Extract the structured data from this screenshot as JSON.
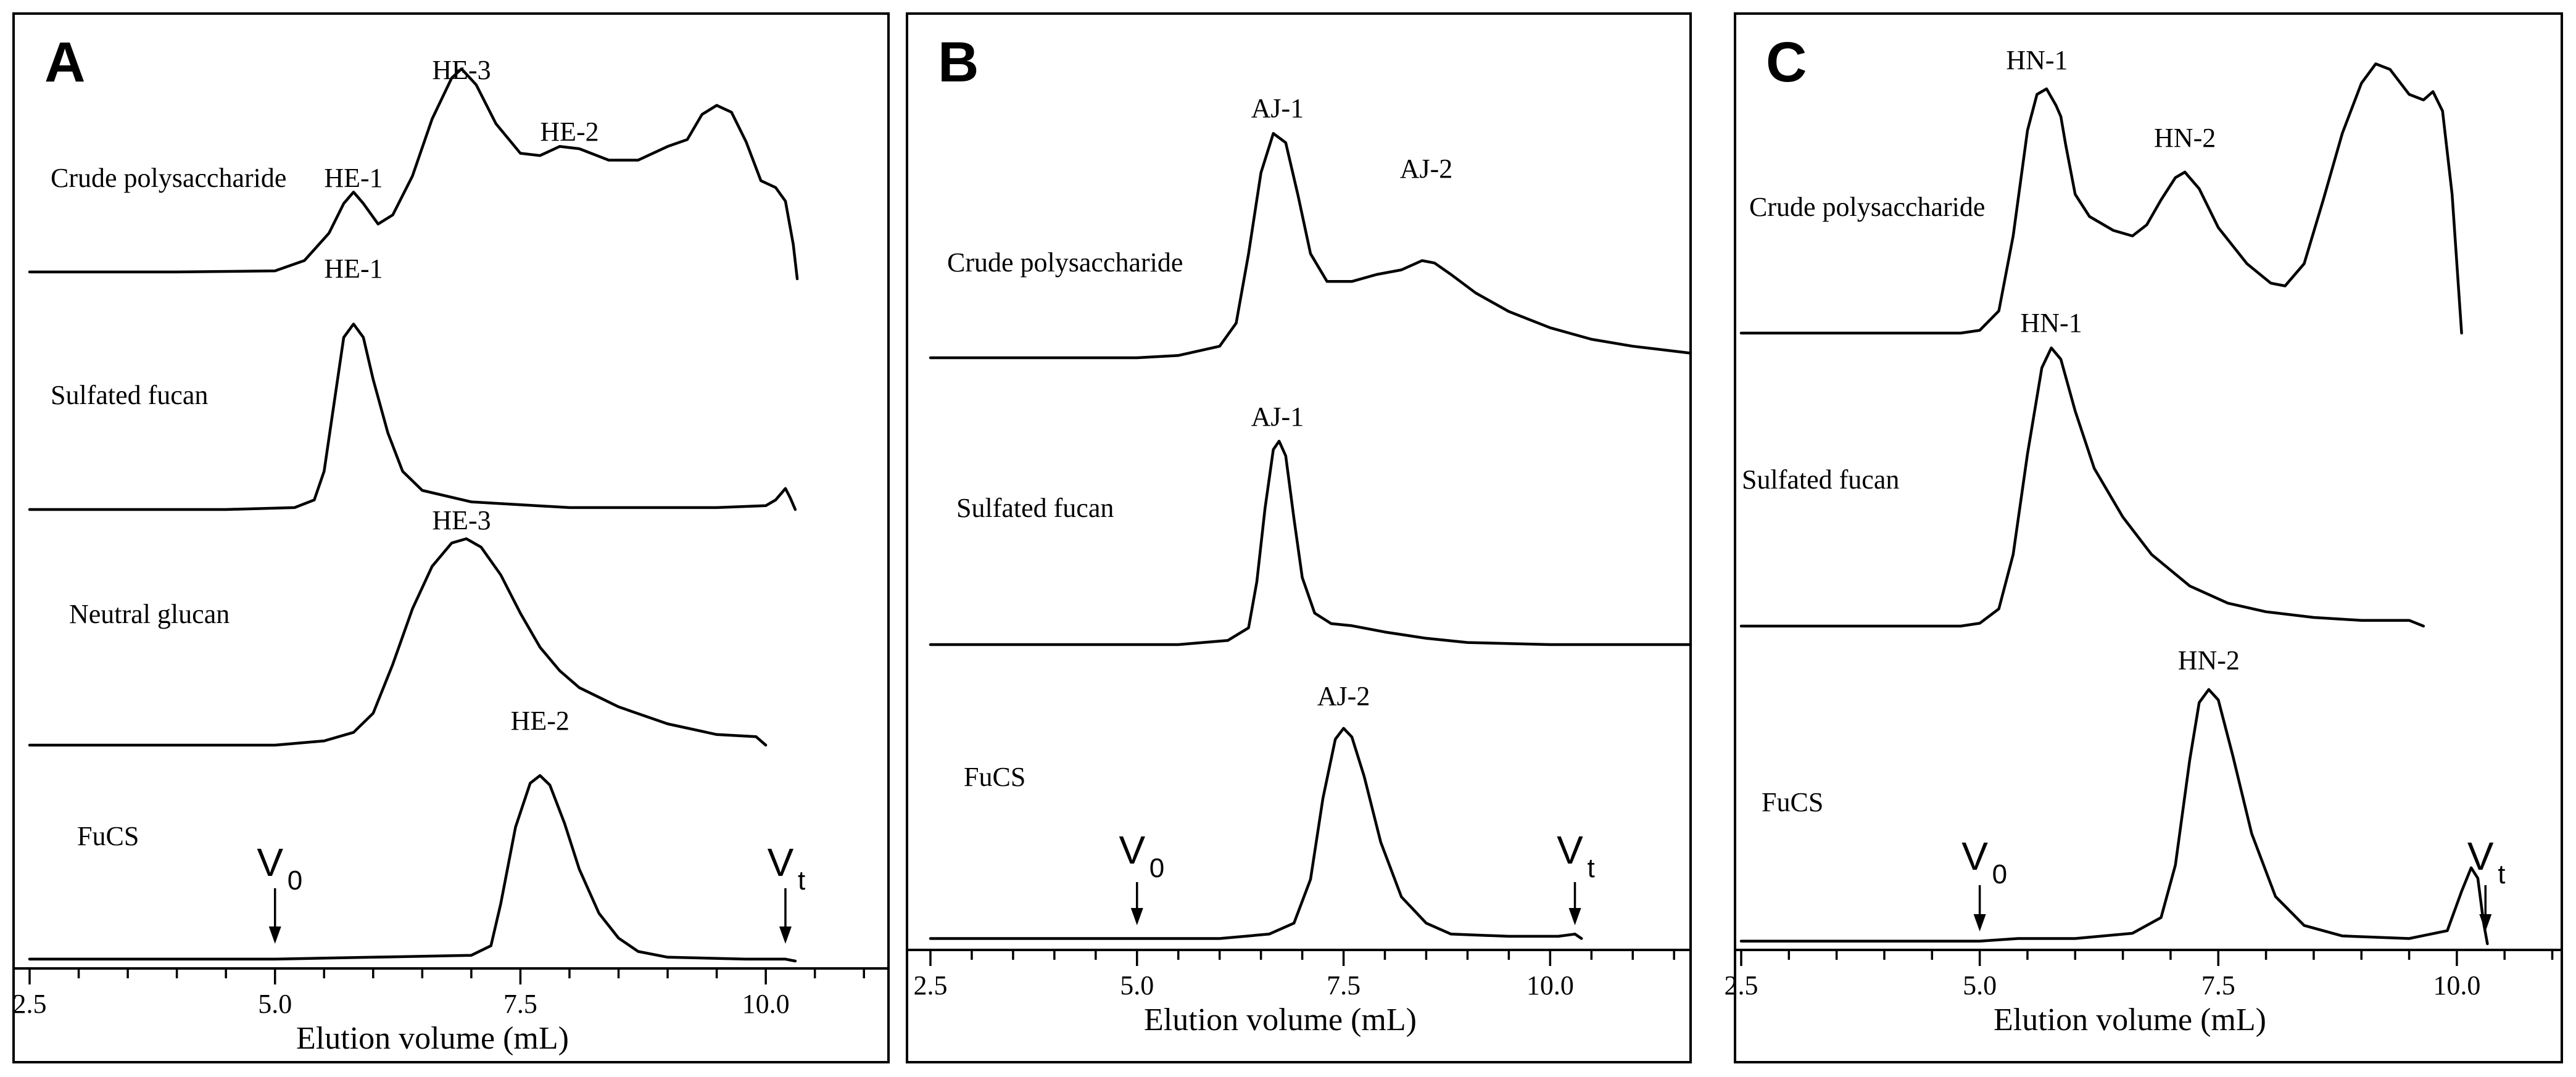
{
  "chart_data": [
    {
      "panel": "A",
      "type": "line",
      "xlabel": "Elution volume (mL)",
      "xlim": [
        2.5,
        11.25
      ],
      "xticks": [
        2.5,
        5.0,
        7.5,
        10.0
      ],
      "grid": false,
      "series": [
        {
          "name": "Crude polysaccharide",
          "points": [
            [
              2.5,
              0.03
            ],
            [
              4.0,
              0.03
            ],
            [
              5.0,
              0.035
            ],
            [
              5.3,
              0.08
            ],
            [
              5.55,
              0.2
            ],
            [
              5.7,
              0.33
            ],
            [
              5.8,
              0.38
            ],
            [
              5.9,
              0.33
            ],
            [
              6.05,
              0.24
            ],
            [
              6.2,
              0.28
            ],
            [
              6.4,
              0.45
            ],
            [
              6.6,
              0.7
            ],
            [
              6.8,
              0.88
            ],
            [
              6.9,
              0.92
            ],
            [
              7.05,
              0.85
            ],
            [
              7.25,
              0.68
            ],
            [
              7.5,
              0.55
            ],
            [
              7.7,
              0.54
            ],
            [
              7.9,
              0.58
            ],
            [
              8.1,
              0.57
            ],
            [
              8.4,
              0.52
            ],
            [
              8.7,
              0.52
            ],
            [
              9.0,
              0.58
            ],
            [
              9.2,
              0.61
            ],
            [
              9.35,
              0.72
            ],
            [
              9.5,
              0.76
            ],
            [
              9.65,
              0.73
            ],
            [
              9.8,
              0.6
            ],
            [
              9.95,
              0.43
            ],
            [
              10.1,
              0.4
            ],
            [
              10.2,
              0.34
            ],
            [
              10.28,
              0.15
            ],
            [
              10.32,
              0.0
            ]
          ],
          "peak_labels": [
            {
              "text": "HE-1",
              "x": 5.8
            },
            {
              "text": "HE-3",
              "x": 6.9
            },
            {
              "text": "HE-2",
              "x": 8.0
            }
          ]
        },
        {
          "name": "Sulfated fucan",
          "points": [
            [
              2.5,
              0.0
            ],
            [
              4.5,
              0.0
            ],
            [
              5.2,
              0.01
            ],
            [
              5.4,
              0.05
            ],
            [
              5.5,
              0.2
            ],
            [
              5.6,
              0.55
            ],
            [
              5.7,
              0.9
            ],
            [
              5.8,
              0.97
            ],
            [
              5.9,
              0.9
            ],
            [
              6.0,
              0.68
            ],
            [
              6.15,
              0.4
            ],
            [
              6.3,
              0.2
            ],
            [
              6.5,
              0.1
            ],
            [
              7.0,
              0.04
            ],
            [
              8.0,
              0.01
            ],
            [
              9.5,
              0.01
            ],
            [
              10.0,
              0.02
            ],
            [
              10.1,
              0.05
            ],
            [
              10.2,
              0.11
            ],
            [
              10.25,
              0.06
            ],
            [
              10.3,
              0.0
            ]
          ],
          "peak_labels": [
            {
              "text": "HE-1",
              "x": 5.8
            }
          ]
        },
        {
          "name": "Neutral glucan",
          "points": [
            [
              2.5,
              0.0
            ],
            [
              5.0,
              0.0
            ],
            [
              5.5,
              0.02
            ],
            [
              5.8,
              0.06
            ],
            [
              6.0,
              0.15
            ],
            [
              6.2,
              0.38
            ],
            [
              6.4,
              0.64
            ],
            [
              6.6,
              0.84
            ],
            [
              6.8,
              0.95
            ],
            [
              6.95,
              0.97
            ],
            [
              7.1,
              0.93
            ],
            [
              7.3,
              0.8
            ],
            [
              7.5,
              0.62
            ],
            [
              7.7,
              0.46
            ],
            [
              7.9,
              0.35
            ],
            [
              8.1,
              0.27
            ],
            [
              8.5,
              0.18
            ],
            [
              9.0,
              0.1
            ],
            [
              9.5,
              0.05
            ],
            [
              9.9,
              0.04
            ],
            [
              10.0,
              0.0
            ]
          ],
          "peak_labels": [
            {
              "text": "HE-3",
              "x": 6.9
            }
          ]
        },
        {
          "name": "FuCS",
          "points": [
            [
              2.5,
              0.01
            ],
            [
              4.0,
              0.01
            ],
            [
              5.0,
              0.01
            ],
            [
              6.0,
              0.02
            ],
            [
              7.0,
              0.03
            ],
            [
              7.2,
              0.08
            ],
            [
              7.3,
              0.3
            ],
            [
              7.45,
              0.7
            ],
            [
              7.6,
              0.93
            ],
            [
              7.7,
              0.97
            ],
            [
              7.8,
              0.92
            ],
            [
              7.95,
              0.72
            ],
            [
              8.1,
              0.48
            ],
            [
              8.3,
              0.25
            ],
            [
              8.5,
              0.12
            ],
            [
              8.7,
              0.05
            ],
            [
              9.0,
              0.02
            ],
            [
              9.8,
              0.01
            ],
            [
              10.2,
              0.01
            ],
            [
              10.3,
              0.0
            ]
          ],
          "peak_labels": [
            {
              "text": "HE-2",
              "x": 7.7
            }
          ]
        }
      ],
      "markers": [
        {
          "symbol": "V",
          "subscript": "0",
          "x": 5.0
        },
        {
          "symbol": "V",
          "subscript": "t",
          "x": 10.2
        }
      ]
    },
    {
      "panel": "B",
      "type": "line",
      "xlabel": "Elution volume (mL)",
      "xlim": [
        2.5,
        11.7
      ],
      "xticks": [
        2.5,
        5.0,
        7.5,
        10.0
      ],
      "grid": false,
      "series": [
        {
          "name": "Crude polysaccharide",
          "points": [
            [
              2.5,
              0.0
            ],
            [
              5.0,
              0.0
            ],
            [
              5.5,
              0.01
            ],
            [
              6.0,
              0.05
            ],
            [
              6.2,
              0.15
            ],
            [
              6.35,
              0.45
            ],
            [
              6.5,
              0.8
            ],
            [
              6.65,
              0.97
            ],
            [
              6.8,
              0.93
            ],
            [
              6.95,
              0.7
            ],
            [
              7.1,
              0.45
            ],
            [
              7.3,
              0.33
            ],
            [
              7.6,
              0.33
            ],
            [
              7.9,
              0.36
            ],
            [
              8.2,
              0.38
            ],
            [
              8.45,
              0.42
            ],
            [
              8.6,
              0.41
            ],
            [
              8.8,
              0.36
            ],
            [
              9.1,
              0.28
            ],
            [
              9.5,
              0.2
            ],
            [
              10.0,
              0.13
            ],
            [
              10.5,
              0.08
            ],
            [
              11.0,
              0.05
            ],
            [
              11.7,
              0.02
            ]
          ],
          "peak_labels": [
            {
              "text": "AJ-1",
              "x": 6.7
            },
            {
              "text": "AJ-2",
              "x": 8.5
            }
          ]
        },
        {
          "name": "Sulfated fucan",
          "points": [
            [
              2.5,
              0.0
            ],
            [
              5.5,
              0.0
            ],
            [
              6.1,
              0.02
            ],
            [
              6.35,
              0.08
            ],
            [
              6.45,
              0.3
            ],
            [
              6.55,
              0.65
            ],
            [
              6.65,
              0.93
            ],
            [
              6.72,
              0.97
            ],
            [
              6.8,
              0.9
            ],
            [
              6.9,
              0.6
            ],
            [
              7.0,
              0.32
            ],
            [
              7.15,
              0.15
            ],
            [
              7.35,
              0.1
            ],
            [
              7.6,
              0.09
            ],
            [
              8.0,
              0.06
            ],
            [
              8.5,
              0.03
            ],
            [
              9.0,
              0.01
            ],
            [
              10.0,
              0.0
            ],
            [
              11.7,
              0.0
            ]
          ],
          "peak_labels": [
            {
              "text": "AJ-1",
              "x": 6.7
            }
          ]
        },
        {
          "name": "FuCS",
          "points": [
            [
              2.5,
              0.01
            ],
            [
              5.0,
              0.01
            ],
            [
              6.0,
              0.01
            ],
            [
              6.6,
              0.03
            ],
            [
              6.9,
              0.08
            ],
            [
              7.1,
              0.28
            ],
            [
              7.25,
              0.65
            ],
            [
              7.4,
              0.92
            ],
            [
              7.5,
              0.97
            ],
            [
              7.6,
              0.93
            ],
            [
              7.75,
              0.75
            ],
            [
              7.95,
              0.45
            ],
            [
              8.2,
              0.2
            ],
            [
              8.5,
              0.08
            ],
            [
              8.8,
              0.03
            ],
            [
              9.5,
              0.02
            ],
            [
              10.1,
              0.02
            ],
            [
              10.3,
              0.03
            ],
            [
              10.38,
              0.01
            ]
          ],
          "peak_labels": [
            {
              "text": "AJ-2",
              "x": 7.5
            }
          ]
        }
      ],
      "markers": [
        {
          "symbol": "V",
          "subscript": "0",
          "x": 5.0
        },
        {
          "symbol": "V",
          "subscript": "t",
          "x": 10.3
        }
      ]
    },
    {
      "panel": "C",
      "type": "line",
      "xlabel": "Elution volume (mL)",
      "xlim": [
        2.5,
        11.1
      ],
      "xticks": [
        2.5,
        5.0,
        7.5,
        10.0
      ],
      "grid": false,
      "series": [
        {
          "name": "Crude polysaccharide",
          "points": [
            [
              2.5,
              0.0
            ],
            [
              4.8,
              0.0
            ],
            [
              5.0,
              0.01
            ],
            [
              5.2,
              0.08
            ],
            [
              5.35,
              0.35
            ],
            [
              5.5,
              0.73
            ],
            [
              5.6,
              0.86
            ],
            [
              5.7,
              0.88
            ],
            [
              5.8,
              0.82
            ],
            [
              5.85,
              0.78
            ],
            [
              5.9,
              0.68
            ],
            [
              6.0,
              0.5
            ],
            [
              6.15,
              0.42
            ],
            [
              6.4,
              0.37
            ],
            [
              6.6,
              0.35
            ],
            [
              6.75,
              0.39
            ],
            [
              6.9,
              0.48
            ],
            [
              7.05,
              0.56
            ],
            [
              7.15,
              0.58
            ],
            [
              7.3,
              0.52
            ],
            [
              7.5,
              0.38
            ],
            [
              7.8,
              0.25
            ],
            [
              8.05,
              0.18
            ],
            [
              8.2,
              0.17
            ],
            [
              8.4,
              0.25
            ],
            [
              8.6,
              0.48
            ],
            [
              8.8,
              0.72
            ],
            [
              9.0,
              0.9
            ],
            [
              9.15,
              0.97
            ],
            [
              9.3,
              0.95
            ],
            [
              9.5,
              0.86
            ],
            [
              9.65,
              0.84
            ],
            [
              9.75,
              0.87
            ],
            [
              9.85,
              0.8
            ],
            [
              9.95,
              0.5
            ],
            [
              10.05,
              0.0
            ]
          ],
          "peak_labels": [
            {
              "text": "HN-1",
              "x": 5.6
            },
            {
              "text": "HN-2",
              "x": 7.15
            }
          ]
        },
        {
          "name": "Sulfated fucan",
          "points": [
            [
              2.5,
              0.0
            ],
            [
              4.8,
              0.0
            ],
            [
              5.0,
              0.01
            ],
            [
              5.2,
              0.06
            ],
            [
              5.35,
              0.25
            ],
            [
              5.5,
              0.6
            ],
            [
              5.65,
              0.9
            ],
            [
              5.75,
              0.97
            ],
            [
              5.85,
              0.93
            ],
            [
              6.0,
              0.75
            ],
            [
              6.2,
              0.55
            ],
            [
              6.5,
              0.38
            ],
            [
              6.8,
              0.25
            ],
            [
              7.2,
              0.14
            ],
            [
              7.6,
              0.08
            ],
            [
              8.0,
              0.05
            ],
            [
              8.5,
              0.03
            ],
            [
              9.0,
              0.02
            ],
            [
              9.5,
              0.02
            ],
            [
              9.65,
              0.0
            ]
          ],
          "peak_labels": [
            {
              "text": "HN-1",
              "x": 5.75
            }
          ]
        },
        {
          "name": "FuCS",
          "points": [
            [
              2.5,
              0.01
            ],
            [
              5.0,
              0.01
            ],
            [
              5.4,
              0.02
            ],
            [
              5.7,
              0.02
            ],
            [
              6.0,
              0.02
            ],
            [
              6.6,
              0.04
            ],
            [
              6.9,
              0.1
            ],
            [
              7.05,
              0.3
            ],
            [
              7.2,
              0.7
            ],
            [
              7.3,
              0.92
            ],
            [
              7.4,
              0.97
            ],
            [
              7.5,
              0.93
            ],
            [
              7.65,
              0.72
            ],
            [
              7.85,
              0.42
            ],
            [
              8.1,
              0.18
            ],
            [
              8.4,
              0.07
            ],
            [
              8.8,
              0.03
            ],
            [
              9.5,
              0.02
            ],
            [
              9.9,
              0.05
            ],
            [
              10.05,
              0.2
            ],
            [
              10.15,
              0.29
            ],
            [
              10.22,
              0.25
            ],
            [
              10.28,
              0.08
            ],
            [
              10.32,
              0.0
            ]
          ],
          "peak_labels": [
            {
              "text": "HN-2",
              "x": 7.4
            }
          ]
        }
      ],
      "markers": [
        {
          "symbol": "V",
          "subscript": "0",
          "x": 5.0
        },
        {
          "symbol": "V",
          "subscript": "t",
          "x": 10.3
        }
      ]
    }
  ]
}
